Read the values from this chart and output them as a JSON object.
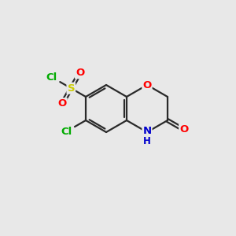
{
  "bg_color": "#e8e8e8",
  "bond_color": "#2a2a2a",
  "bond_width": 1.6,
  "atom_colors": {
    "O": "#ff0000",
    "N": "#0000cc",
    "S": "#cccc00",
    "Cl": "#00aa00",
    "C": "#2a2a2a"
  },
  "font_size": 9.5,
  "fig_width": 3.0,
  "fig_height": 3.0,
  "dpi": 100
}
